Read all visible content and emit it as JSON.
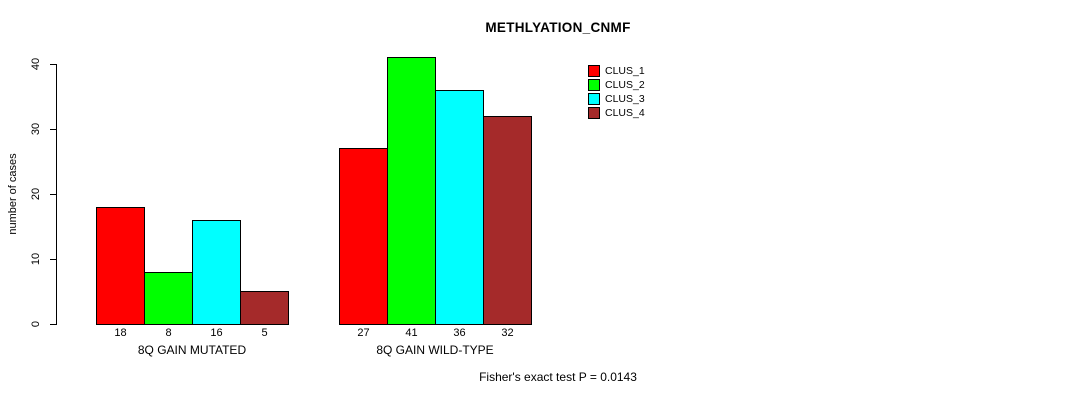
{
  "chart_data": {
    "type": "bar",
    "title": "METHLYATION_CNMF",
    "ylabel": "number of cases",
    "xlabel": "",
    "categories": [
      "8Q GAIN MUTATED",
      "8Q GAIN WILD-TYPE"
    ],
    "series": [
      {
        "name": "CLUS_1",
        "color": "#FF0000",
        "values": [
          18,
          27
        ]
      },
      {
        "name": "CLUS_2",
        "color": "#00FF00",
        "values": [
          8,
          41
        ]
      },
      {
        "name": "CLUS_3",
        "color": "#00FFFF",
        "values": [
          16,
          36
        ]
      },
      {
        "name": "CLUS_4",
        "color": "#A52A2A",
        "values": [
          5,
          32
        ]
      }
    ],
    "bar_value_labels": [
      [
        18,
        8,
        16,
        5
      ],
      [
        27,
        41,
        36,
        32
      ]
    ],
    "yticks": [
      0,
      10,
      20,
      30,
      40
    ],
    "ylim": [
      0,
      43
    ],
    "grid": false,
    "legend_position": "top-right",
    "annotation": "Fisher's exact test P = 0.0143"
  }
}
